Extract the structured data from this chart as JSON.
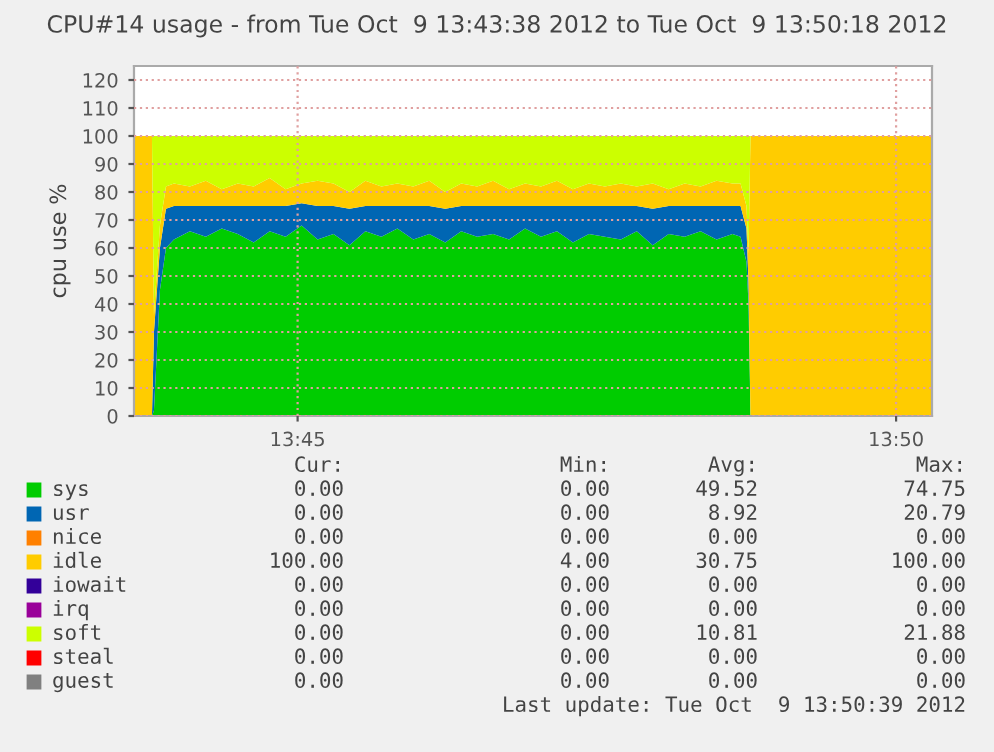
{
  "chart_data": {
    "type": "area",
    "stacked": true,
    "title": "CPU#14 usage - from Tue Oct  9 13:43:38 2012 to Tue Oct  9 13:50:18 2012",
    "ylabel": "cpu use %",
    "x": [
      13.72722,
      13.72972,
      13.73,
      13.73083,
      13.73167,
      13.73278,
      13.735,
      13.73722,
      13.73944,
      13.74167,
      13.74389,
      13.74611,
      13.74833,
      13.75056,
      13.75278,
      13.755,
      13.75722,
      13.75944,
      13.76167,
      13.76389,
      13.76611,
      13.76833,
      13.77056,
      13.77278,
      13.775,
      13.77722,
      13.77944,
      13.78167,
      13.78389,
      13.78611,
      13.78833,
      13.79056,
      13.79278,
      13.795,
      13.79722,
      13.79944,
      13.80167,
      13.80389,
      13.80611,
      13.80833,
      13.81056,
      13.81167,
      13.8125,
      13.81278,
      13.81306,
      13.83833
    ],
    "series": [
      {
        "name": "sys",
        "color": "#00cc00",
        "values": [
          0,
          0,
          2,
          45,
          60,
          63,
          66,
          64,
          67,
          65,
          62,
          66,
          64,
          68,
          63,
          65,
          61,
          66,
          64,
          67,
          63,
          65,
          62,
          66,
          64,
          65,
          63,
          67,
          64,
          66,
          62,
          65,
          64,
          63,
          66,
          61,
          65,
          64,
          66,
          63,
          65,
          64,
          55,
          40,
          0,
          0
        ]
      },
      {
        "name": "usr",
        "color": "#0066b3",
        "values": [
          0,
          0,
          28,
          15,
          14,
          12,
          9,
          11,
          8,
          10,
          13,
          9,
          11,
          8,
          12,
          10,
          13,
          9,
          11,
          8,
          12,
          10,
          12,
          9,
          11,
          10,
          12,
          8,
          11,
          9,
          13,
          10,
          11,
          12,
          9,
          13,
          10,
          11,
          9,
          12,
          10,
          11,
          12,
          8,
          0,
          0
        ]
      },
      {
        "name": "nice",
        "color": "#ff8000",
        "values": [
          null,
          null,
          null,
          null,
          null,
          null,
          null,
          null,
          null,
          null,
          null,
          null,
          null,
          null,
          null,
          null,
          null,
          null,
          null,
          null,
          null,
          null,
          null,
          null,
          null,
          null,
          null,
          null,
          null,
          null,
          null,
          null,
          null,
          null,
          null,
          null,
          null,
          null,
          null,
          null,
          null,
          null,
          null,
          null,
          null,
          null
        ]
      },
      {
        "name": "idle",
        "color": "#ffcc00",
        "values": [
          100,
          100,
          6,
          8,
          8,
          8,
          7,
          9,
          6,
          8,
          7,
          10,
          6,
          7,
          9,
          8,
          6,
          9,
          7,
          8,
          7,
          9,
          6,
          8,
          7,
          9,
          6,
          8,
          7,
          9,
          6,
          8,
          7,
          8,
          7,
          9,
          6,
          8,
          7,
          9,
          8,
          8,
          8,
          10,
          100,
          100
        ]
      },
      {
        "name": "iowait",
        "color": "#330099",
        "values": [
          null,
          null,
          null,
          null,
          null,
          null,
          null,
          null,
          null,
          null,
          null,
          null,
          null,
          null,
          null,
          null,
          null,
          null,
          null,
          null,
          null,
          null,
          null,
          null,
          null,
          null,
          null,
          null,
          null,
          null,
          null,
          null,
          null,
          null,
          null,
          null,
          null,
          null,
          null,
          null,
          null,
          null,
          null,
          null,
          null,
          null
        ]
      },
      {
        "name": "irq",
        "color": "#990099",
        "values": [
          null,
          null,
          null,
          null,
          null,
          null,
          null,
          null,
          null,
          null,
          null,
          null,
          null,
          null,
          null,
          null,
          null,
          null,
          null,
          null,
          null,
          null,
          null,
          null,
          null,
          null,
          null,
          null,
          null,
          null,
          null,
          null,
          null,
          null,
          null,
          null,
          null,
          null,
          null,
          null,
          null,
          null,
          null,
          null,
          null,
          null
        ]
      },
      {
        "name": "soft",
        "color": "#ccff00",
        "values": [
          0,
          0,
          64,
          32,
          18,
          17,
          18,
          16,
          19,
          17,
          18,
          15,
          19,
          17,
          16,
          17,
          20,
          16,
          18,
          17,
          18,
          16,
          20,
          17,
          18,
          16,
          19,
          17,
          18,
          16,
          19,
          17,
          18,
          17,
          18,
          17,
          19,
          17,
          18,
          16,
          17,
          17,
          25,
          42,
          0,
          0
        ]
      },
      {
        "name": "steal",
        "color": "#ff0000",
        "values": [
          null,
          null,
          null,
          null,
          null,
          null,
          null,
          null,
          null,
          null,
          null,
          null,
          null,
          null,
          null,
          null,
          null,
          null,
          null,
          null,
          null,
          null,
          null,
          null,
          null,
          null,
          null,
          null,
          null,
          null,
          null,
          null,
          null,
          null,
          null,
          null,
          null,
          null,
          null,
          null,
          null,
          null,
          null,
          null,
          null,
          null
        ]
      },
      {
        "name": "guest",
        "color": "#808080",
        "values": [
          null,
          null,
          null,
          null,
          null,
          null,
          null,
          null,
          null,
          null,
          null,
          null,
          null,
          null,
          null,
          null,
          null,
          null,
          null,
          null,
          null,
          null,
          null,
          null,
          null,
          null,
          null,
          null,
          null,
          null,
          null,
          null,
          null,
          null,
          null,
          null,
          null,
          null,
          null,
          null,
          null,
          null,
          null,
          null,
          null,
          null
        ]
      }
    ],
    "xlim": [
      13.72722,
      13.83833
    ],
    "xticks": [
      {
        "value": 13.75,
        "label": "13:45"
      },
      {
        "value": 13.83333,
        "label": "13:50"
      }
    ],
    "ylim": [
      0,
      125
    ],
    "yticks": [
      0,
      10,
      20,
      30,
      40,
      50,
      60,
      70,
      80,
      90,
      100,
      110,
      120
    ],
    "grid": true,
    "legend": "bottom",
    "annotations": [
      "Cur:",
      "Min:",
      "Avg:",
      "Max:",
      "0.00",
      "0.00",
      "49.52",
      "74.75",
      "0.00",
      "0.00",
      "8.92",
      "20.79",
      "0.00",
      "0.00",
      "0.00",
      "0.00",
      "100.00",
      "4.00",
      "30.75",
      "100.00",
      "0.00",
      "0.00",
      "0.00",
      "0.00",
      "0.00",
      "0.00",
      "0.00",
      "0.00",
      "0.00",
      "0.00",
      "10.81",
      "21.88",
      "0.00",
      "0.00",
      "0.00",
      "0.00",
      "0.00",
      "0.00",
      "0.00",
      "0.00",
      "Last update: Tue Oct  9 13:50:39 2012"
    ]
  }
}
